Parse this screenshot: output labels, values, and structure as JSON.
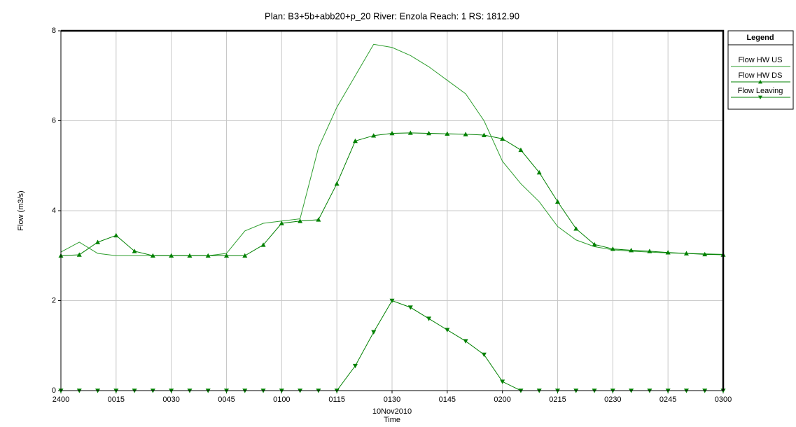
{
  "chart_data": {
    "type": "line",
    "title": "Plan: B3+5b+abb20+p_20   River: Enzola   Reach: 1   RS: 1812.90",
    "y_label": "Flow (m3/s)",
    "x_label": "Time",
    "x_sublabel": "10Nov2010",
    "legend_title": "Legend",
    "legend_position": "right",
    "grid": true,
    "xlim": [
      0,
      180
    ],
    "xticks": [
      {
        "value": 0,
        "label": "2400"
      },
      {
        "value": 15,
        "label": "0015"
      },
      {
        "value": 30,
        "label": "0030"
      },
      {
        "value": 45,
        "label": "0045"
      },
      {
        "value": 60,
        "label": "0100"
      },
      {
        "value": 75,
        "label": "0115"
      },
      {
        "value": 90,
        "label": "0130"
      },
      {
        "value": 105,
        "label": "0145"
      },
      {
        "value": 120,
        "label": "0200"
      },
      {
        "value": 135,
        "label": "0215"
      },
      {
        "value": 150,
        "label": "0230"
      },
      {
        "value": 165,
        "label": "0245"
      },
      {
        "value": 180,
        "label": "0300"
      }
    ],
    "ylim": [
      0,
      8
    ],
    "yticks": [
      0,
      2,
      4,
      6,
      8
    ],
    "x": [
      0,
      5,
      10,
      15,
      20,
      25,
      30,
      35,
      40,
      45,
      50,
      55,
      60,
      65,
      70,
      75,
      80,
      85,
      90,
      95,
      100,
      105,
      110,
      115,
      120,
      125,
      130,
      135,
      140,
      145,
      150,
      155,
      160,
      165,
      170,
      175,
      180
    ],
    "series": [
      {
        "name": "Flow HW US",
        "color": "#2e9e2e",
        "marker": "none",
        "values": [
          3.08,
          3.3,
          3.05,
          3.0,
          3.0,
          3.0,
          3.0,
          3.0,
          3.0,
          3.05,
          3.55,
          3.72,
          3.77,
          3.82,
          5.4,
          6.3,
          7.0,
          7.7,
          7.63,
          7.45,
          7.2,
          6.9,
          6.6,
          6.0,
          5.1,
          4.6,
          4.2,
          3.65,
          3.35,
          3.2,
          3.13,
          3.1,
          3.08,
          3.06,
          3.05,
          3.04,
          3.03
        ]
      },
      {
        "name": "Flow HW DS",
        "color": "#008000",
        "marker": "triangle-up",
        "values": [
          3.0,
          3.02,
          3.3,
          3.45,
          3.1,
          3.0,
          3.0,
          3.0,
          3.0,
          3.0,
          3.0,
          3.24,
          3.72,
          3.77,
          3.8,
          4.6,
          5.55,
          5.67,
          5.72,
          5.73,
          5.72,
          5.71,
          5.7,
          5.68,
          5.6,
          5.35,
          4.85,
          4.2,
          3.6,
          3.25,
          3.15,
          3.12,
          3.1,
          3.07,
          3.05,
          3.03,
          3.02
        ]
      },
      {
        "name": "Flow Leaving",
        "color": "#008000",
        "marker": "triangle-down",
        "values": [
          0,
          0,
          0,
          0,
          0,
          0,
          0,
          0,
          0,
          0,
          0,
          0,
          0,
          0,
          0,
          0,
          0.55,
          1.3,
          2.0,
          1.85,
          1.6,
          1.35,
          1.1,
          0.8,
          0.2,
          0,
          0,
          0,
          0,
          0,
          0,
          0,
          0,
          0,
          0,
          0,
          0
        ]
      }
    ]
  }
}
